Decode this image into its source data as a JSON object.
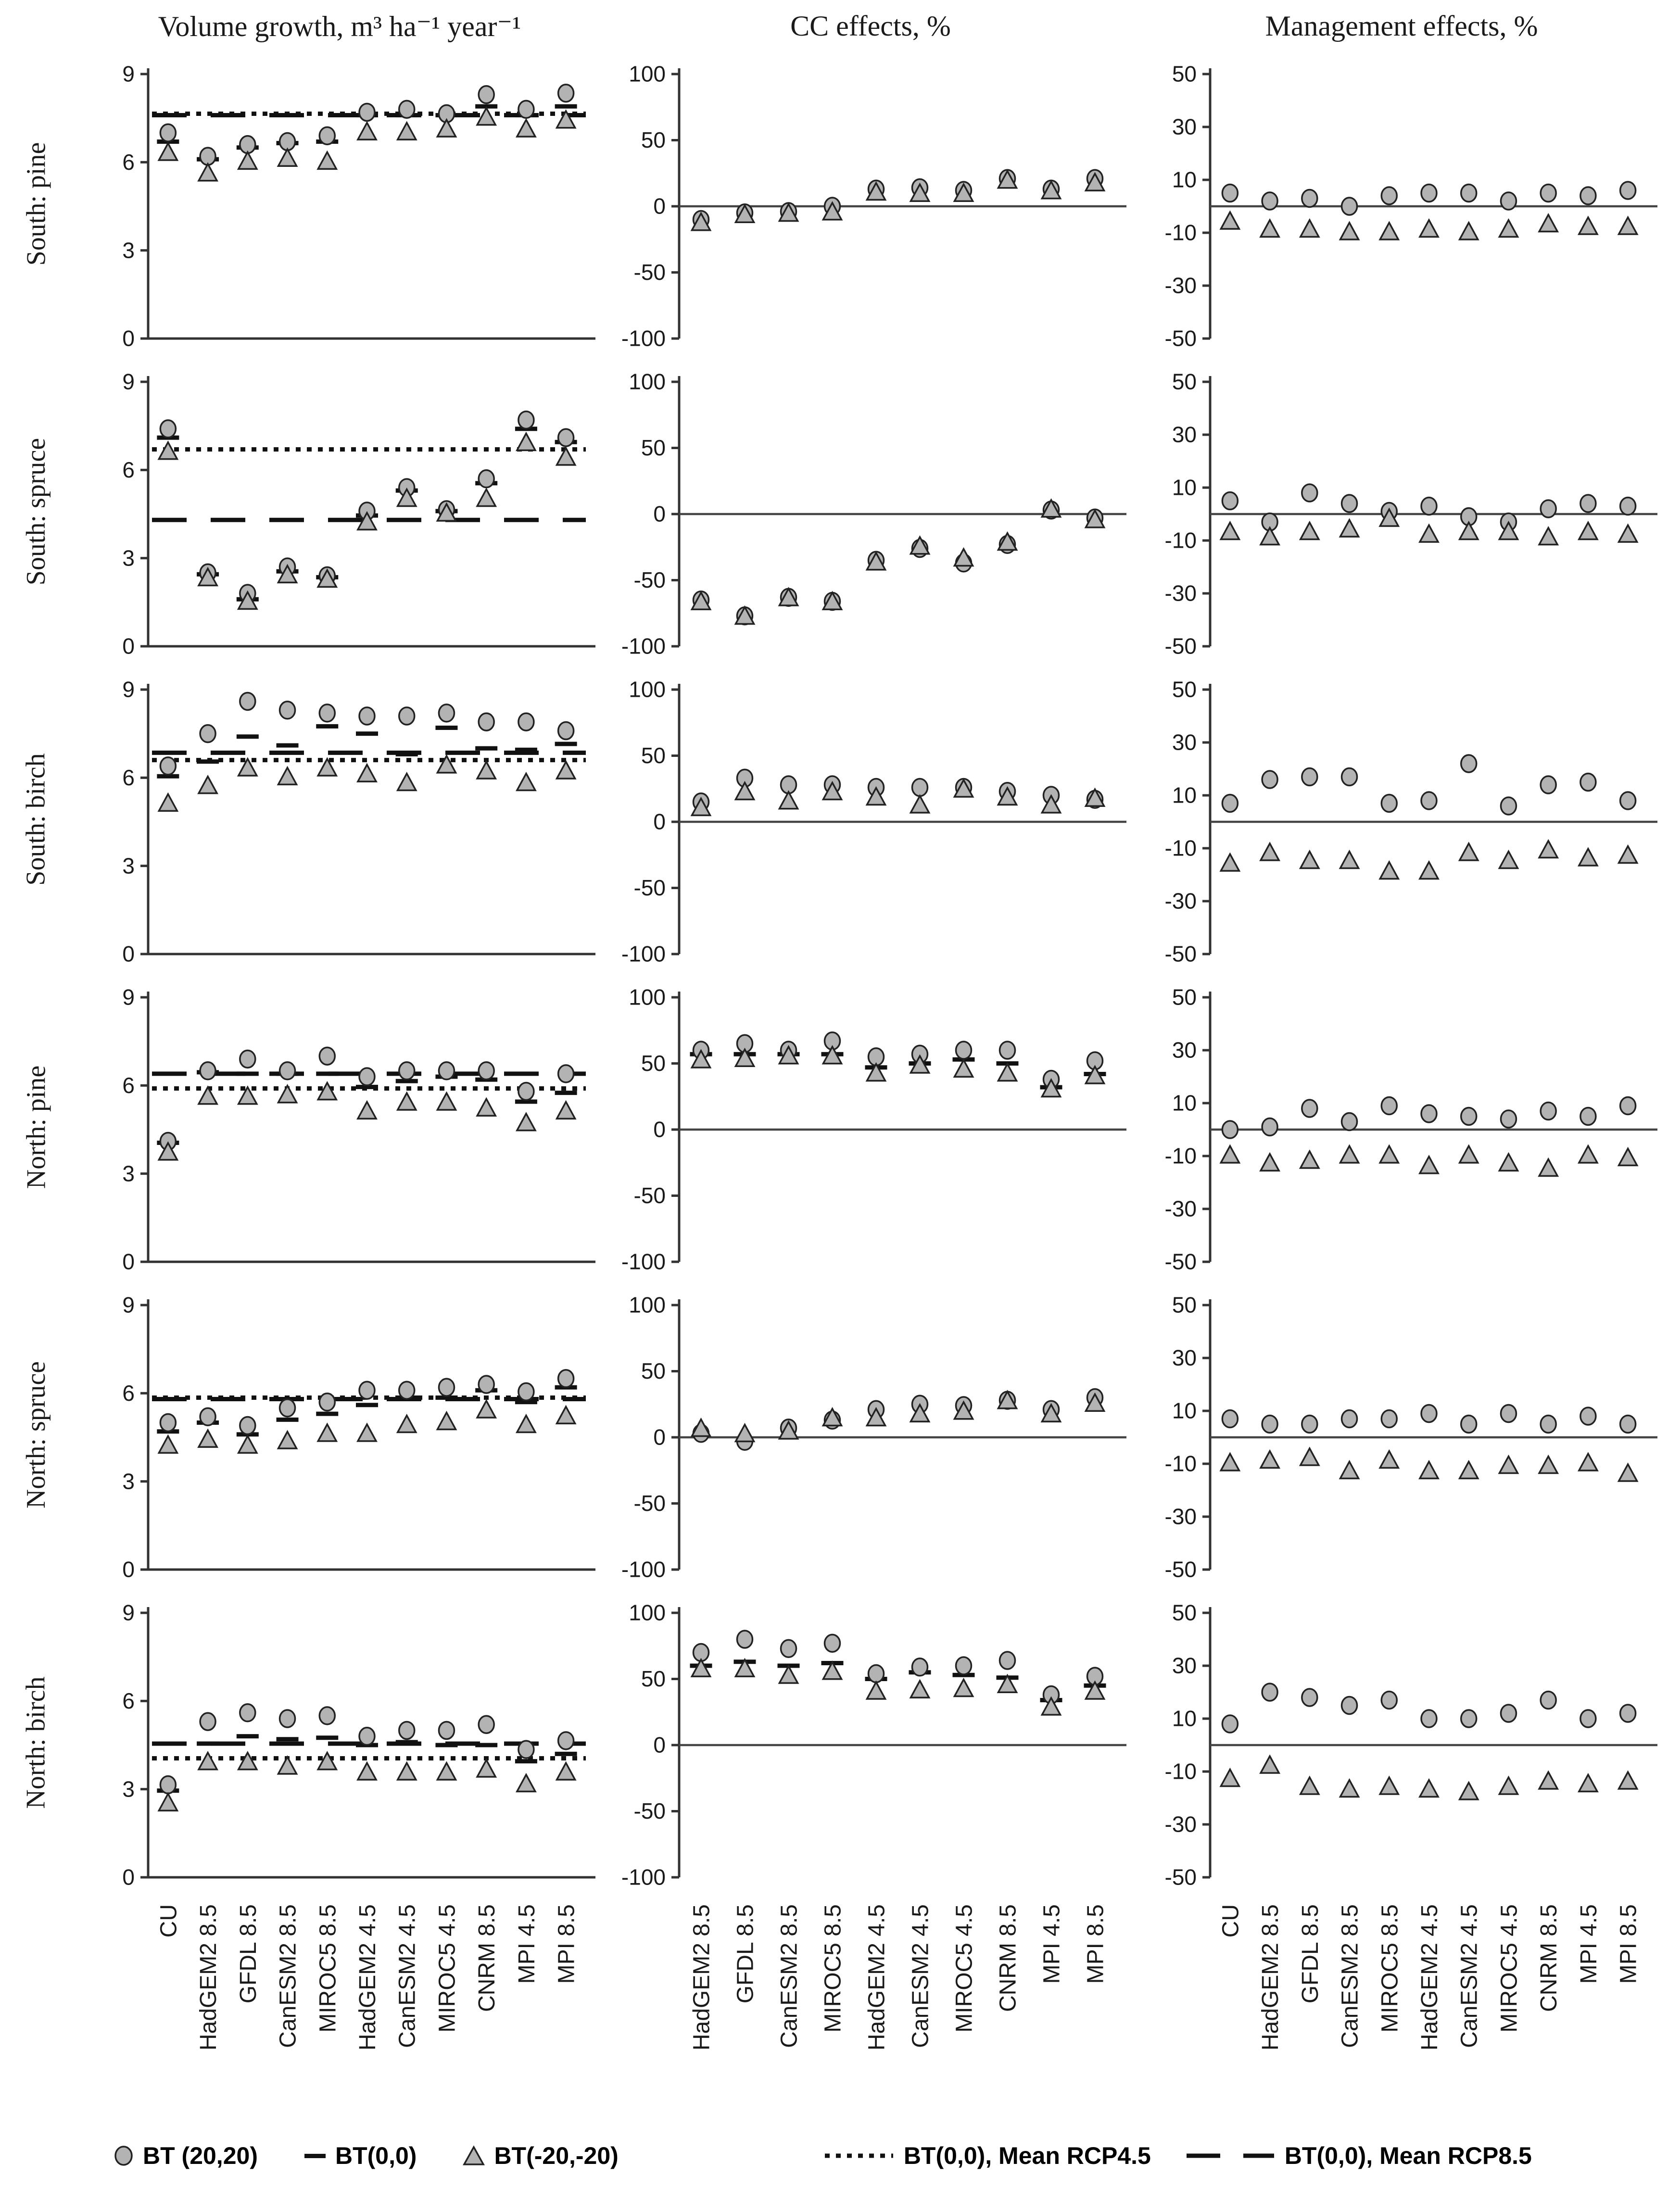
{
  "chart_data": {
    "type": "scatter",
    "column_titles": [
      "Volume growth, m³ ha⁻¹ year⁻¹",
      "CC effects, %",
      "Management effects, %"
    ],
    "row_labels": [
      "South: pine",
      "South: spruce",
      "South: birch",
      "North: pine",
      "North: spruce",
      "North: birch"
    ],
    "categories": [
      "CU",
      "HadGEM2 8.5",
      "GFDL 8.5",
      "CanESM2 8.5",
      "MIROC5 8.5",
      "HadGEM2 4.5",
      "CanESM2 4.5",
      "MIROC5 4.5",
      "CNRM 8.5",
      "MPI 4.5",
      "MPI 8.5"
    ],
    "categories_cc": [
      "HadGEM2 8.5",
      "GFDL 8.5",
      "CanESM2 8.5",
      "MIROC5 8.5",
      "HadGEM2 4.5",
      "CanESM2 4.5",
      "MIROC5 4.5",
      "CNRM 8.5",
      "MPI 4.5",
      "MPI 8.5"
    ],
    "axes": {
      "volume": {
        "min": 0,
        "max": 9,
        "ticks": [
          9,
          6,
          3,
          0
        ],
        "baseline": true
      },
      "cc": {
        "min": -100,
        "max": 100,
        "ticks": [
          100,
          50,
          0,
          -50,
          -100
        ],
        "zeroline": true
      },
      "management": {
        "min": -50,
        "max": 50,
        "ticks": [
          50,
          30,
          10,
          -10,
          -30,
          -50
        ],
        "zeroline": true
      }
    },
    "legend": [
      {
        "marker": "circle",
        "label": "BT (20,20)"
      },
      {
        "marker": "dash",
        "label": "BT(0,0)"
      },
      {
        "marker": "triangle",
        "label": "BT(-20,-20)"
      },
      {
        "marker": "dotted-line",
        "label": "BT(0,0), Mean RCP4.5"
      },
      {
        "marker": "dashed-line",
        "label": "BT(0,0), Mean RCP8.5"
      }
    ],
    "marker_fill": "#b3b3b3",
    "marker_stroke": "#222222",
    "line_color": "#111111",
    "rows": [
      {
        "label": "South: pine",
        "volume": {
          "bt2020": [
            7.0,
            6.2,
            6.6,
            6.7,
            6.9,
            7.7,
            7.8,
            7.65,
            8.3,
            7.8,
            8.35
          ],
          "bt00": [
            6.7,
            6.1,
            6.5,
            6.65,
            6.7,
            7.6,
            7.6,
            7.6,
            7.9,
            7.6,
            7.9
          ],
          "btm20": [
            6.3,
            5.6,
            6.0,
            6.1,
            6.0,
            7.0,
            7.0,
            7.1,
            7.5,
            7.1,
            7.4
          ],
          "mean_rcp45": 7.65,
          "mean_rcp85": 7.6
        },
        "cc": {
          "bt2020": [
            -10,
            -5,
            -4,
            0,
            13,
            14,
            12,
            21,
            13,
            21
          ],
          "bt00": null,
          "btm20": [
            -13,
            -7,
            -6,
            -5,
            10,
            9,
            9,
            19,
            11,
            17
          ]
        },
        "management": {
          "bt2020": [
            5,
            2,
            3,
            0,
            4,
            5,
            5,
            2,
            5,
            4,
            6
          ],
          "btm20": [
            -6,
            -9,
            -9,
            -10,
            -10,
            -9,
            -10,
            -9,
            -7,
            -8,
            -8
          ]
        }
      },
      {
        "label": "South: spruce",
        "volume": {
          "bt2020": [
            7.4,
            2.5,
            1.8,
            2.7,
            2.4,
            4.6,
            5.4,
            4.65,
            5.7,
            7.7,
            7.1
          ],
          "bt00": [
            7.1,
            2.45,
            1.6,
            2.55,
            2.35,
            4.45,
            5.3,
            4.6,
            5.55,
            7.4,
            6.95
          ],
          "btm20": [
            6.6,
            2.3,
            1.5,
            2.4,
            2.25,
            4.2,
            5.0,
            4.5,
            5.0,
            6.9,
            6.4
          ],
          "mean_rcp45": 6.7,
          "mean_rcp85": 4.3
        },
        "cc": {
          "bt2020": [
            -65,
            -77,
            -63,
            -66,
            -35,
            -26,
            -37,
            -23,
            3,
            -3
          ],
          "bt00": null,
          "btm20": [
            -67,
            -78,
            -64,
            -67,
            -37,
            -25,
            -34,
            -22,
            3,
            -5
          ]
        },
        "management": {
          "bt2020": [
            5,
            -3,
            8,
            4,
            1,
            3,
            -1,
            -3,
            2,
            4,
            3
          ],
          "btm20": [
            -7,
            -9,
            -7,
            -6,
            -2,
            -8,
            -7,
            -7,
            -9,
            -7,
            -8
          ]
        }
      },
      {
        "label": "South: birch",
        "volume": {
          "bt2020": [
            6.4,
            7.5,
            8.6,
            8.3,
            8.2,
            8.1,
            8.1,
            8.2,
            7.9,
            7.9,
            7.6
          ],
          "bt00": [
            6.05,
            6.55,
            7.4,
            7.1,
            7.75,
            7.5,
            6.8,
            7.7,
            7.0,
            6.95,
            7.15
          ],
          "btm20": [
            5.1,
            5.7,
            6.3,
            6.0,
            6.3,
            6.1,
            5.8,
            6.4,
            6.2,
            5.8,
            6.2
          ],
          "mean_rcp45": 6.6,
          "mean_rcp85": 6.85
        },
        "cc": {
          "bt2020": [
            15,
            33,
            28,
            28,
            26,
            26,
            26,
            23,
            20,
            17
          ],
          "bt00": null,
          "btm20": [
            10,
            22,
            15,
            22,
            18,
            12,
            24,
            18,
            12,
            17
          ]
        },
        "management": {
          "bt2020": [
            7,
            16,
            17,
            17,
            7,
            8,
            22,
            6,
            14,
            15,
            8
          ],
          "btm20": [
            -16,
            -12,
            -15,
            -15,
            -19,
            -19,
            -12,
            -15,
            -11,
            -14,
            -13
          ]
        }
      },
      {
        "label": "North: pine",
        "volume": {
          "bt2020": [
            4.1,
            6.5,
            6.9,
            6.5,
            7.0,
            6.3,
            6.5,
            6.5,
            6.5,
            5.8,
            6.4
          ],
          "bt00": [
            4.05,
            6.45,
            6.4,
            6.4,
            6.4,
            5.95,
            6.15,
            6.3,
            6.2,
            5.45,
            5.75
          ],
          "btm20": [
            3.7,
            5.6,
            5.6,
            5.65,
            5.75,
            5.1,
            5.4,
            5.4,
            5.2,
            4.7,
            5.1
          ],
          "mean_rcp45": 5.9,
          "mean_rcp85": 6.4
        },
        "cc": {
          "bt2020": [
            60,
            65,
            60,
            67,
            55,
            57,
            60,
            60,
            38,
            52
          ],
          "bt00": [
            57,
            57,
            57,
            57,
            47,
            50,
            53,
            50,
            32,
            42
          ],
          "btm20": [
            52,
            53,
            55,
            55,
            42,
            48,
            45,
            42,
            30,
            40
          ]
        },
        "management": {
          "bt2020": [
            0,
            1,
            8,
            3,
            9,
            6,
            5,
            4,
            7,
            5,
            9
          ],
          "btm20": [
            -10,
            -13,
            -12,
            -10,
            -10,
            -14,
            -10,
            -13,
            -15,
            -10,
            -11
          ]
        }
      },
      {
        "label": "North: spruce",
        "volume": {
          "bt2020": [
            5.0,
            5.2,
            4.9,
            5.5,
            5.7,
            6.1,
            6.1,
            6.2,
            6.3,
            6.05,
            6.5
          ],
          "bt00": [
            4.7,
            5.0,
            4.6,
            5.1,
            5.3,
            5.6,
            5.85,
            5.85,
            6.1,
            5.7,
            6.2
          ],
          "btm20": [
            4.2,
            4.4,
            4.2,
            4.35,
            4.6,
            4.6,
            4.9,
            5.0,
            5.4,
            4.9,
            5.2
          ],
          "mean_rcp45": 5.85,
          "mean_rcp85": 5.8
        },
        "cc": {
          "bt2020": [
            3,
            -3,
            7,
            13,
            21,
            25,
            24,
            28,
            21,
            30
          ],
          "bt00": null,
          "btm20": [
            6,
            2,
            4,
            14,
            14,
            17,
            19,
            27,
            17,
            25
          ]
        },
        "management": {
          "bt2020": [
            7,
            5,
            5,
            7,
            7,
            9,
            5,
            9,
            5,
            8,
            5
          ],
          "btm20": [
            -10,
            -9,
            -8,
            -13,
            -9,
            -13,
            -13,
            -11,
            -11,
            -10,
            -14
          ]
        }
      },
      {
        "label": "North: birch",
        "volume": {
          "bt2020": [
            3.15,
            5.3,
            5.6,
            5.4,
            5.5,
            4.8,
            5.0,
            5.0,
            5.2,
            4.35,
            4.65
          ],
          "bt00": [
            2.95,
            4.55,
            4.8,
            4.7,
            4.75,
            4.5,
            4.6,
            4.5,
            4.5,
            3.95,
            4.2
          ],
          "btm20": [
            2.5,
            3.9,
            3.9,
            3.75,
            3.9,
            3.55,
            3.55,
            3.55,
            3.65,
            3.15,
            3.55
          ],
          "mean_rcp45": 4.05,
          "mean_rcp85": 4.55
        },
        "cc": {
          "bt2020": [
            70,
            80,
            73,
            77,
            54,
            59,
            60,
            64,
            38,
            52
          ],
          "bt00": [
            60,
            63,
            60,
            62,
            50,
            55,
            53,
            51,
            34,
            45
          ],
          "btm20": [
            57,
            57,
            52,
            55,
            40,
            41,
            42,
            45,
            28,
            40
          ]
        },
        "management": {
          "bt2020": [
            8,
            20,
            18,
            15,
            17,
            10,
            10,
            12,
            17,
            10,
            12
          ],
          "btm20": [
            -13,
            -8,
            -16,
            -17,
            -16,
            -17,
            -18,
            -16,
            -14,
            -15,
            -14
          ]
        }
      }
    ]
  }
}
